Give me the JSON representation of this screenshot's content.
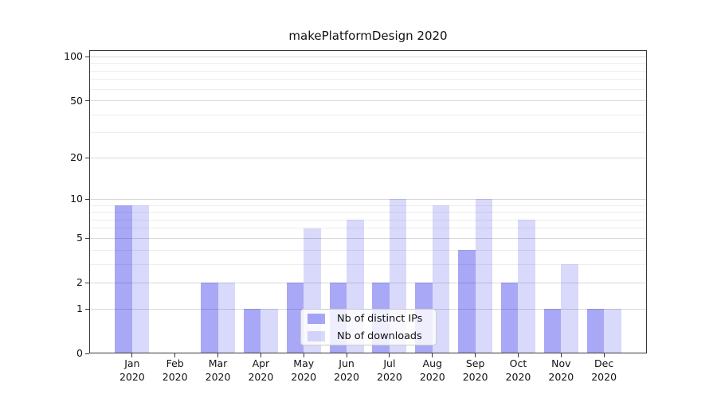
{
  "title": "makePlatformDesign 2020",
  "colors": {
    "bar_distinct_ips": "rgba(0,0,230,0.34)",
    "bar_downloads": "rgba(0,0,230,0.15)",
    "major_grid": "#d9d9d9",
    "minor_grid": "#ededed",
    "frame": "#38383a",
    "text": "#111111",
    "legend_border": "#cccccc",
    "legend_bg": "rgba(255,255,255,0.8)"
  },
  "chart_data": {
    "type": "bar",
    "title": "makePlatformDesign 2020",
    "categories": [
      "Jan",
      "Feb",
      "Mar",
      "Apr",
      "May",
      "Jun",
      "Jul",
      "Aug",
      "Sep",
      "Oct",
      "Nov",
      "Dec"
    ],
    "year_label": "2020",
    "series": [
      {
        "name": "Nb of distinct IPs",
        "color": "rgba(0,0,230,0.34)",
        "values": [
          9,
          0,
          2,
          1,
          2,
          2,
          2,
          2,
          4,
          2,
          1,
          1
        ]
      },
      {
        "name": "Nb of downloads",
        "color": "rgba(0,0,230,0.15)",
        "values": [
          9,
          0,
          2,
          1,
          6,
          7,
          10,
          9,
          10,
          7,
          3,
          1
        ]
      }
    ],
    "y_scale": "log10(1+x)",
    "y_ticks_labeled": [
      0,
      1,
      2,
      5,
      10,
      20,
      50,
      100
    ],
    "y_ticks_minor": [
      3,
      4,
      6,
      7,
      8,
      9,
      30,
      40,
      60,
      70,
      80,
      90
    ],
    "ylim": [
      0,
      111
    ],
    "grid": true,
    "legend_position": "lower center",
    "bar_width_fraction": 0.4
  }
}
